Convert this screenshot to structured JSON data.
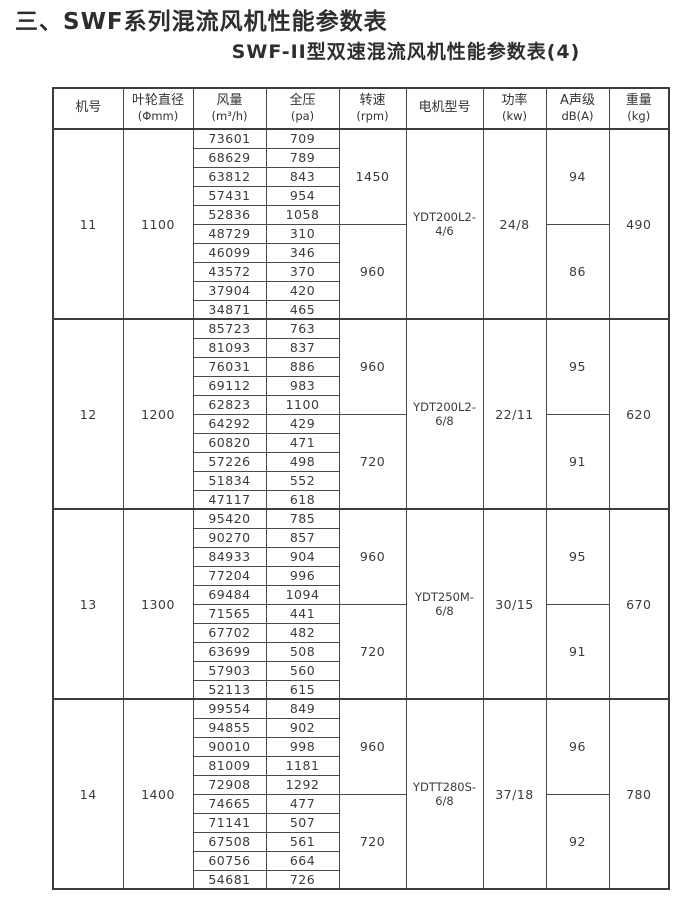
{
  "page": {
    "title": "三、SWF系列混流风机性能参数表",
    "subtitle": "SWF-II型双速混流风机性能参数表(4)"
  },
  "table": {
    "columns": [
      {
        "id": "fan-no",
        "label": "机号",
        "sub": ""
      },
      {
        "id": "diameter",
        "label": "叶轮直径",
        "sub": "(Φmm)"
      },
      {
        "id": "airflow",
        "label": "风量",
        "sub": "(m³/h)"
      },
      {
        "id": "pressure",
        "label": "全压",
        "sub": "(pa)"
      },
      {
        "id": "speed",
        "label": "转速",
        "sub": "(rpm)"
      },
      {
        "id": "motor",
        "label": "电机型号",
        "sub": ""
      },
      {
        "id": "power",
        "label": "功率",
        "sub": "(kw)"
      },
      {
        "id": "noise",
        "label": "A声级",
        "sub": "dB(A)"
      },
      {
        "id": "weight",
        "label": "重量",
        "sub": "(kg)"
      }
    ],
    "groups": [
      {
        "fan_no": "11",
        "diameter": "1100",
        "motor_model": "YDT200L2-4/6",
        "power_kw": "24/8",
        "weight_kg": "490",
        "speed_groups": [
          {
            "speed_rpm": "1450",
            "noise_db": "94",
            "rows": [
              [
                "73601",
                "709"
              ],
              [
                "68629",
                "789"
              ],
              [
                "63812",
                "843"
              ],
              [
                "57431",
                "954"
              ],
              [
                "52836",
                "1058"
              ]
            ]
          },
          {
            "speed_rpm": "960",
            "noise_db": "86",
            "rows": [
              [
                "48729",
                "310"
              ],
              [
                "46099",
                "346"
              ],
              [
                "43572",
                "370"
              ],
              [
                "37904",
                "420"
              ],
              [
                "34871",
                "465"
              ]
            ]
          }
        ]
      },
      {
        "fan_no": "12",
        "diameter": "1200",
        "motor_model": "YDT200L2-6/8",
        "power_kw": "22/11",
        "weight_kg": "620",
        "speed_groups": [
          {
            "speed_rpm": "960",
            "noise_db": "95",
            "rows": [
              [
                "85723",
                "763"
              ],
              [
                "81093",
                "837"
              ],
              [
                "76031",
                "886"
              ],
              [
                "69112",
                "983"
              ],
              [
                "62823",
                "1100"
              ]
            ]
          },
          {
            "speed_rpm": "720",
            "noise_db": "91",
            "rows": [
              [
                "64292",
                "429"
              ],
              [
                "60820",
                "471"
              ],
              [
                "57226",
                "498"
              ],
              [
                "51834",
                "552"
              ],
              [
                "47117",
                "618"
              ]
            ]
          }
        ]
      },
      {
        "fan_no": "13",
        "diameter": "1300",
        "motor_model": "YDT250M-6/8",
        "power_kw": "30/15",
        "weight_kg": "670",
        "speed_groups": [
          {
            "speed_rpm": "960",
            "noise_db": "95",
            "rows": [
              [
                "95420",
                "785"
              ],
              [
                "90270",
                "857"
              ],
              [
                "84933",
                "904"
              ],
              [
                "77204",
                "996"
              ],
              [
                "69484",
                "1094"
              ]
            ]
          },
          {
            "speed_rpm": "720",
            "noise_db": "91",
            "rows": [
              [
                "71565",
                "441"
              ],
              [
                "67702",
                "482"
              ],
              [
                "63699",
                "508"
              ],
              [
                "57903",
                "560"
              ],
              [
                "52113",
                "615"
              ]
            ]
          }
        ]
      },
      {
        "fan_no": "14",
        "diameter": "1400",
        "motor_model": "YDTT280S-6/8",
        "power_kw": "37/18",
        "weight_kg": "780",
        "speed_groups": [
          {
            "speed_rpm": "960",
            "noise_db": "96",
            "rows": [
              [
                "99554",
                "849"
              ],
              [
                "94855",
                "902"
              ],
              [
                "90010",
                "998"
              ],
              [
                "81009",
                "1181"
              ],
              [
                "72908",
                "1292"
              ]
            ]
          },
          {
            "speed_rpm": "720",
            "noise_db": "92",
            "rows": [
              [
                "74665",
                "477"
              ],
              [
                "71141",
                "507"
              ],
              [
                "67508",
                "561"
              ],
              [
                "60756",
                "664"
              ],
              [
                "54681",
                "726"
              ]
            ]
          }
        ]
      }
    ]
  }
}
